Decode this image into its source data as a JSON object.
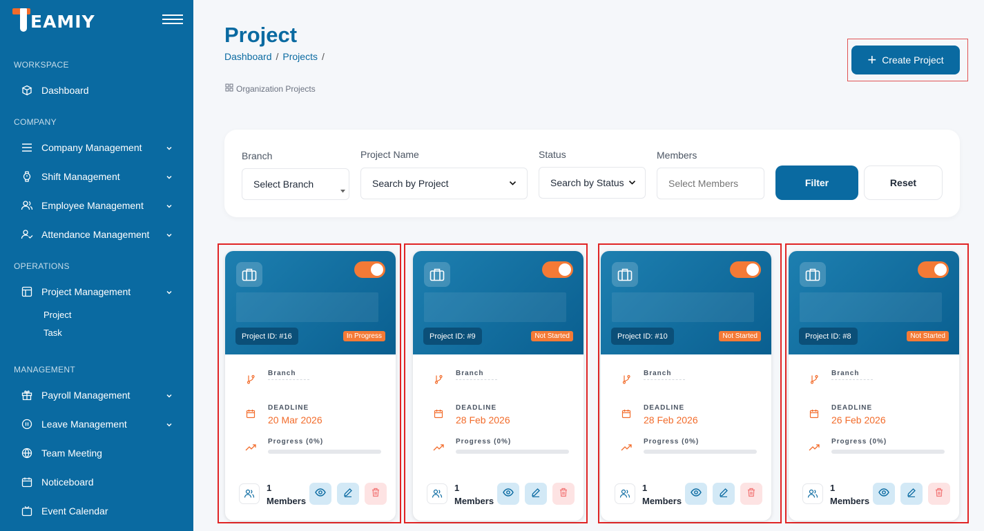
{
  "brand": {
    "logo_text": "EAMIY"
  },
  "sidebar": {
    "sections": {
      "workspace": "WORKSPACE",
      "company": "COMPANY",
      "operations": "OPERATIONS",
      "management": "MANAGEMENT"
    },
    "items": {
      "dashboard": "Dashboard",
      "company_management": "Company Management",
      "shift_management": "Shift Management",
      "employee_management": "Employee Management",
      "attendance_management": "Attendance Management",
      "project_management": "Project Management",
      "project": "Project",
      "task": "Task",
      "payroll_management": "Payroll Management",
      "leave_management": "Leave Management",
      "team_meeting": "Team Meeting",
      "noticeboard": "Noticeboard",
      "event_calendar": "Event Calendar"
    }
  },
  "header": {
    "title": "Project",
    "breadcrumb": [
      "Dashboard",
      "Projects"
    ],
    "breadcrumb_sep": "/",
    "subtitle": "Organization Projects",
    "create_label": "Create Project"
  },
  "filters": {
    "branch_label": "Branch",
    "branch_value": "Select Branch",
    "project_label": "Project Name",
    "project_value": "Search by Project",
    "status_label": "Status",
    "status_value": "Search by Status",
    "members_label": "Members",
    "members_placeholder": "Select Members",
    "filter_btn": "Filter",
    "reset_btn": "Reset"
  },
  "card_labels": {
    "branch": "Branch",
    "deadline": "DEADLINE",
    "progress": "Progress (0%)",
    "members_word": "Members"
  },
  "projects": [
    {
      "id": "Project ID: #16",
      "status": "In Progress",
      "deadline": "20 Mar 2026",
      "progress": 0,
      "members": "1"
    },
    {
      "id": "Project ID: #9",
      "status": "Not Started",
      "deadline": "28 Feb 2026",
      "progress": 0,
      "members": "1"
    },
    {
      "id": "Project ID: #10",
      "status": "Not Started",
      "deadline": "28 Feb 2026",
      "progress": 0,
      "members": "1"
    },
    {
      "id": "Project ID: #8",
      "status": "Not Started",
      "deadline": "26 Feb 2026",
      "progress": 0,
      "members": "1"
    }
  ],
  "colors": {
    "primary": "#0a6aa1",
    "accent": "#f26b2a",
    "highlight": "#e02424"
  }
}
